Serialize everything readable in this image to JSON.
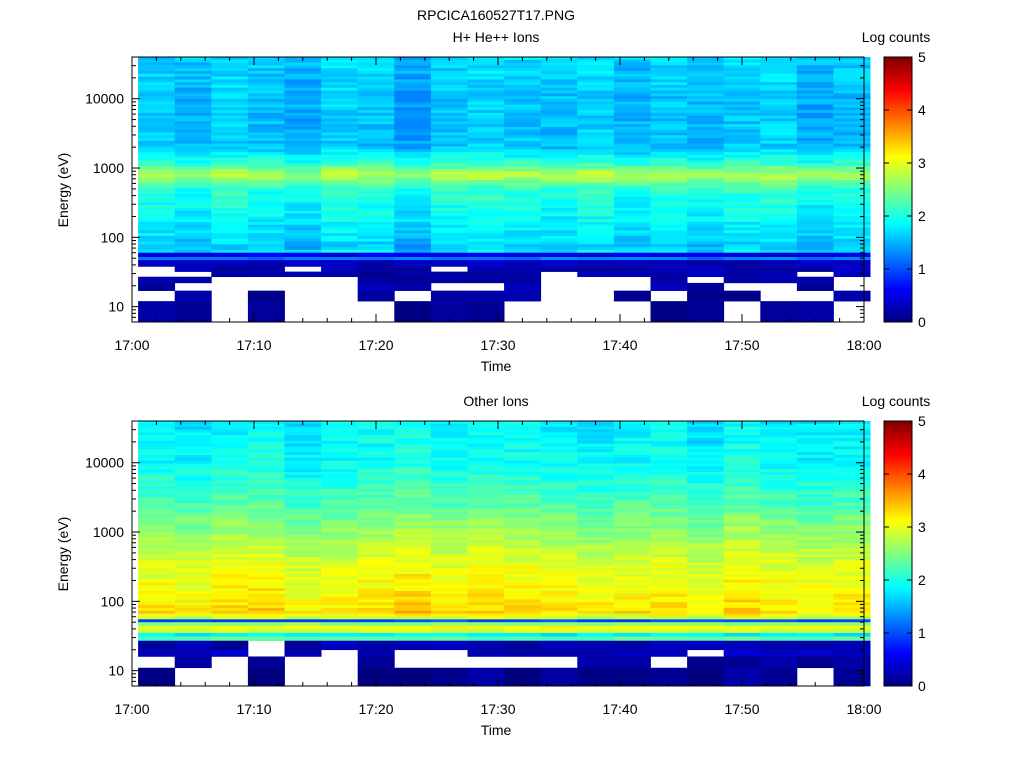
{
  "figure_title": "RPCICA160527T17.PNG",
  "chart_data": [
    {
      "type": "heatmap",
      "title": "H+ He++ Ions",
      "xlabel": "Time",
      "ylabel": "Energy (eV)",
      "x_ticks": [
        "17:00",
        "17:10",
        "17:20",
        "17:30",
        "17:40",
        "17:50",
        "18:00"
      ],
      "x_range": [
        "17:00",
        "18:00"
      ],
      "y_scale": "log",
      "y_ticks": [
        "10",
        "100",
        "1000",
        "10000"
      ],
      "y_range": [
        6,
        40000
      ],
      "colorbar": {
        "label": "Log counts",
        "ticks": [
          "0",
          "1",
          "2",
          "3",
          "4",
          "5"
        ],
        "range": [
          0,
          5
        ]
      },
      "time_bins": [
        "17:02",
        "17:05",
        "17:08",
        "17:11",
        "17:14",
        "17:17",
        "17:20",
        "17:23",
        "17:26",
        "17:29",
        "17:32",
        "17:35",
        "17:38",
        "17:41",
        "17:44",
        "17:47",
        "17:50",
        "17:53",
        "17:56",
        "17:59"
      ],
      "profile": [
        {
          "e": 40000,
          "v": 1.7
        },
        {
          "e": 10000,
          "v": 1.6
        },
        {
          "e": 2000,
          "v": 1.6
        },
        {
          "e": 1100,
          "v": 2.2
        },
        {
          "e": 800,
          "v": 2.8
        },
        {
          "e": 500,
          "v": 2.1
        },
        {
          "e": 200,
          "v": 1.9
        },
        {
          "e": 100,
          "v": 1.75
        },
        {
          "e": 70,
          "v": 1.6
        },
        {
          "e": 62,
          "v": 1.8
        }
      ],
      "column_offsets": [
        0.0,
        -0.1,
        0.05,
        -0.05,
        -0.15,
        0.05,
        0.0,
        -0.2,
        0.0,
        0.05,
        0.0,
        -0.05,
        0.05,
        -0.1,
        0.0,
        -0.1,
        0.0,
        0.05,
        -0.15,
        -0.05
      ],
      "low_energy_bands": [
        {
          "e_top": 60,
          "e_bot": 52,
          "v": 0.5
        },
        {
          "e_top": 52,
          "e_bot": 47,
          "v": 1.2
        },
        {
          "e_top": 47,
          "e_bot": 38,
          "v": 0.3
        },
        {
          "e_top": 38,
          "e_bot": 32,
          "v": 0.25
        },
        {
          "e_top": 32,
          "e_bot": 27,
          "v": 0.2
        },
        {
          "e_top": 27,
          "e_bot": 22,
          "v": 0.15
        },
        {
          "e_top": 22,
          "e_bot": 17,
          "v": 0.2
        },
        {
          "e_top": 17,
          "e_bot": 12,
          "v": 0.15
        },
        {
          "e_top": 12,
          "e_bot": 6,
          "v": 0.1
        }
      ],
      "low_energy_mask": [
        [
          1,
          1,
          1,
          1,
          1,
          1,
          1,
          1,
          1,
          1,
          1,
          1,
          1,
          1,
          1,
          1,
          1,
          1,
          1,
          1
        ],
        [
          1,
          1,
          1,
          1,
          1,
          1,
          1,
          1,
          1,
          1,
          1,
          1,
          1,
          1,
          1,
          1,
          1,
          1,
          1,
          1
        ],
        [
          1,
          1,
          1,
          1,
          1,
          1,
          1,
          1,
          1,
          1,
          1,
          1,
          1,
          1,
          1,
          1,
          1,
          1,
          1,
          1
        ],
        [
          0,
          1,
          1,
          1,
          0,
          1,
          1,
          1,
          0,
          1,
          1,
          1,
          1,
          1,
          1,
          1,
          1,
          1,
          1,
          1
        ],
        [
          0,
          0,
          1,
          1,
          1,
          1,
          1,
          1,
          1,
          1,
          1,
          0,
          1,
          1,
          1,
          1,
          1,
          1,
          0,
          1
        ],
        [
          1,
          1,
          0,
          0,
          0,
          0,
          1,
          1,
          1,
          1,
          1,
          0,
          0,
          0,
          1,
          0,
          1,
          1,
          1,
          0
        ],
        [
          1,
          0,
          0,
          0,
          0,
          0,
          1,
          1,
          0,
          0,
          1,
          0,
          0,
          0,
          1,
          1,
          0,
          0,
          1,
          0
        ],
        [
          0,
          1,
          0,
          1,
          0,
          0,
          1,
          0,
          1,
          1,
          1,
          0,
          0,
          1,
          0,
          1,
          1,
          0,
          0,
          1
        ],
        [
          1,
          1,
          0,
          1,
          0,
          0,
          0,
          1,
          1,
          1,
          0,
          0,
          0,
          0,
          1,
          1,
          0,
          1,
          1,
          0
        ]
      ]
    },
    {
      "type": "heatmap",
      "title": "Other Ions",
      "xlabel": "Time",
      "ylabel": "Energy (eV)",
      "x_ticks": [
        "17:00",
        "17:10",
        "17:20",
        "17:30",
        "17:40",
        "17:50",
        "18:00"
      ],
      "x_range": [
        "17:00",
        "18:00"
      ],
      "y_scale": "log",
      "y_ticks": [
        "10",
        "100",
        "1000",
        "10000"
      ],
      "y_range": [
        6,
        40000
      ],
      "colorbar": {
        "label": "Log counts",
        "ticks": [
          "0",
          "1",
          "2",
          "3",
          "4",
          "5"
        ],
        "range": [
          0,
          5
        ]
      },
      "time_bins": [
        "17:02",
        "17:05",
        "17:08",
        "17:11",
        "17:14",
        "17:17",
        "17:20",
        "17:23",
        "17:26",
        "17:29",
        "17:32",
        "17:35",
        "17:38",
        "17:41",
        "17:44",
        "17:47",
        "17:50",
        "17:53",
        "17:56",
        "17:59"
      ],
      "profile": [
        {
          "e": 40000,
          "v": 1.8
        },
        {
          "e": 10000,
          "v": 1.9
        },
        {
          "e": 3000,
          "v": 2.2
        },
        {
          "e": 1000,
          "v": 2.6
        },
        {
          "e": 300,
          "v": 3.0
        },
        {
          "e": 150,
          "v": 3.1
        },
        {
          "e": 90,
          "v": 3.2
        },
        {
          "e": 70,
          "v": 3.3
        },
        {
          "e": 58,
          "v": 2.8
        }
      ],
      "column_offsets": [
        0.0,
        -0.05,
        0.05,
        0.1,
        -0.1,
        0.0,
        0.05,
        0.15,
        0.0,
        0.1,
        0.05,
        0.0,
        -0.05,
        0.0,
        0.05,
        -0.1,
        0.1,
        0.0,
        -0.05,
        0.0
      ],
      "low_energy_bands": [
        {
          "e_top": 55,
          "e_bot": 50,
          "v": 1.0
        },
        {
          "e_top": 50,
          "e_bot": 44,
          "v": 2.6
        },
        {
          "e_top": 44,
          "e_bot": 40,
          "v": 3.1
        },
        {
          "e_top": 40,
          "e_bot": 35,
          "v": 2.9
        },
        {
          "e_top": 35,
          "e_bot": 31,
          "v": 1.8
        },
        {
          "e_top": 31,
          "e_bot": 27,
          "v": 2.3
        },
        {
          "e_top": 27,
          "e_bot": 20,
          "v": 0.2
        },
        {
          "e_top": 20,
          "e_bot": 16,
          "v": 0.3
        },
        {
          "e_top": 16,
          "e_bot": 11,
          "v": 0.15
        },
        {
          "e_top": 11,
          "e_bot": 6,
          "v": 0.1
        }
      ],
      "low_energy_mask": [
        [
          1,
          1,
          1,
          1,
          1,
          1,
          1,
          1,
          1,
          1,
          1,
          1,
          1,
          1,
          1,
          1,
          1,
          1,
          1,
          1
        ],
        [
          1,
          1,
          1,
          1,
          1,
          1,
          1,
          1,
          1,
          1,
          1,
          1,
          1,
          1,
          1,
          1,
          1,
          1,
          1,
          1
        ],
        [
          1,
          1,
          1,
          1,
          1,
          1,
          1,
          1,
          1,
          1,
          1,
          1,
          1,
          1,
          1,
          1,
          1,
          1,
          1,
          1
        ],
        [
          1,
          1,
          1,
          1,
          1,
          1,
          1,
          1,
          1,
          1,
          1,
          1,
          1,
          1,
          1,
          1,
          1,
          1,
          1,
          1
        ],
        [
          1,
          1,
          1,
          1,
          1,
          1,
          1,
          1,
          1,
          1,
          1,
          1,
          1,
          1,
          1,
          1,
          1,
          1,
          1,
          1
        ],
        [
          1,
          1,
          1,
          1,
          1,
          1,
          1,
          1,
          1,
          1,
          1,
          1,
          1,
          1,
          1,
          1,
          1,
          1,
          1,
          1
        ],
        [
          1,
          1,
          1,
          0,
          1,
          1,
          1,
          1,
          1,
          1,
          1,
          1,
          1,
          1,
          1,
          1,
          1,
          1,
          1,
          1
        ],
        [
          1,
          1,
          1,
          0,
          1,
          0,
          1,
          0,
          0,
          1,
          1,
          1,
          1,
          1,
          1,
          0,
          1,
          1,
          1,
          1
        ],
        [
          0,
          1,
          0,
          1,
          0,
          0,
          1,
          0,
          0,
          0,
          0,
          0,
          1,
          1,
          0,
          1,
          1,
          1,
          1,
          1
        ],
        [
          1,
          0,
          0,
          1,
          0,
          0,
          1,
          1,
          1,
          1,
          1,
          1,
          1,
          1,
          1,
          1,
          1,
          1,
          0,
          1
        ]
      ]
    }
  ]
}
